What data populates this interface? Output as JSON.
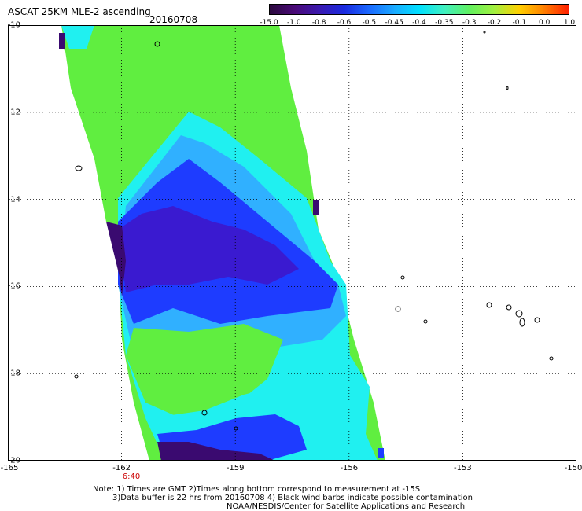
{
  "header": {
    "title": "ASCAT 25KM MLE-2 ascending",
    "date": "20160708"
  },
  "colorbar": {
    "labels": [
      "-15.0",
      "-1.0",
      "-0.8",
      "-0.6",
      "-0.5",
      "-0.45",
      "-0.4",
      "-0.35",
      "-0.3",
      "-0.2",
      "-0.1",
      "0.0",
      "1.0"
    ],
    "colors": [
      "#2b0a3d",
      "#4a0a78",
      "#3a1ab0",
      "#1a2ae0",
      "#1a6aff",
      "#1aaaff",
      "#00e0ff",
      "#40f0c0",
      "#60f060",
      "#a0f040",
      "#ffd000",
      "#ff8000",
      "#ff2000"
    ]
  },
  "axes": {
    "lon_labels": [
      "-165",
      "-162",
      "-159",
      "-156",
      "-153",
      "-150"
    ],
    "lat_labels": [
      "-10",
      "-12",
      "-14",
      "-16",
      "-18",
      "-20"
    ],
    "lon_range": [
      -165,
      -150
    ],
    "lat_range": [
      -20,
      -10
    ]
  },
  "time_label": "6:40",
  "notes": {
    "line1": "Note: 1) Times are GMT 2)Times along bottom correspond to measurement at -15S",
    "line2": "3)Data buffer is 22 hrs from 20160708 4) Black wind barbs indicate possible contamination",
    "line3": "NOAA/NESDIS/Center for Satellite Applications and Research"
  },
  "swath": {
    "colors": {
      "green": "#60ee40",
      "cyan": "#20f0f0",
      "lightblue": "#30b0ff",
      "blue": "#1e3cff",
      "darkblue": "#3a1ad0",
      "purple": "#3a0a70"
    }
  }
}
